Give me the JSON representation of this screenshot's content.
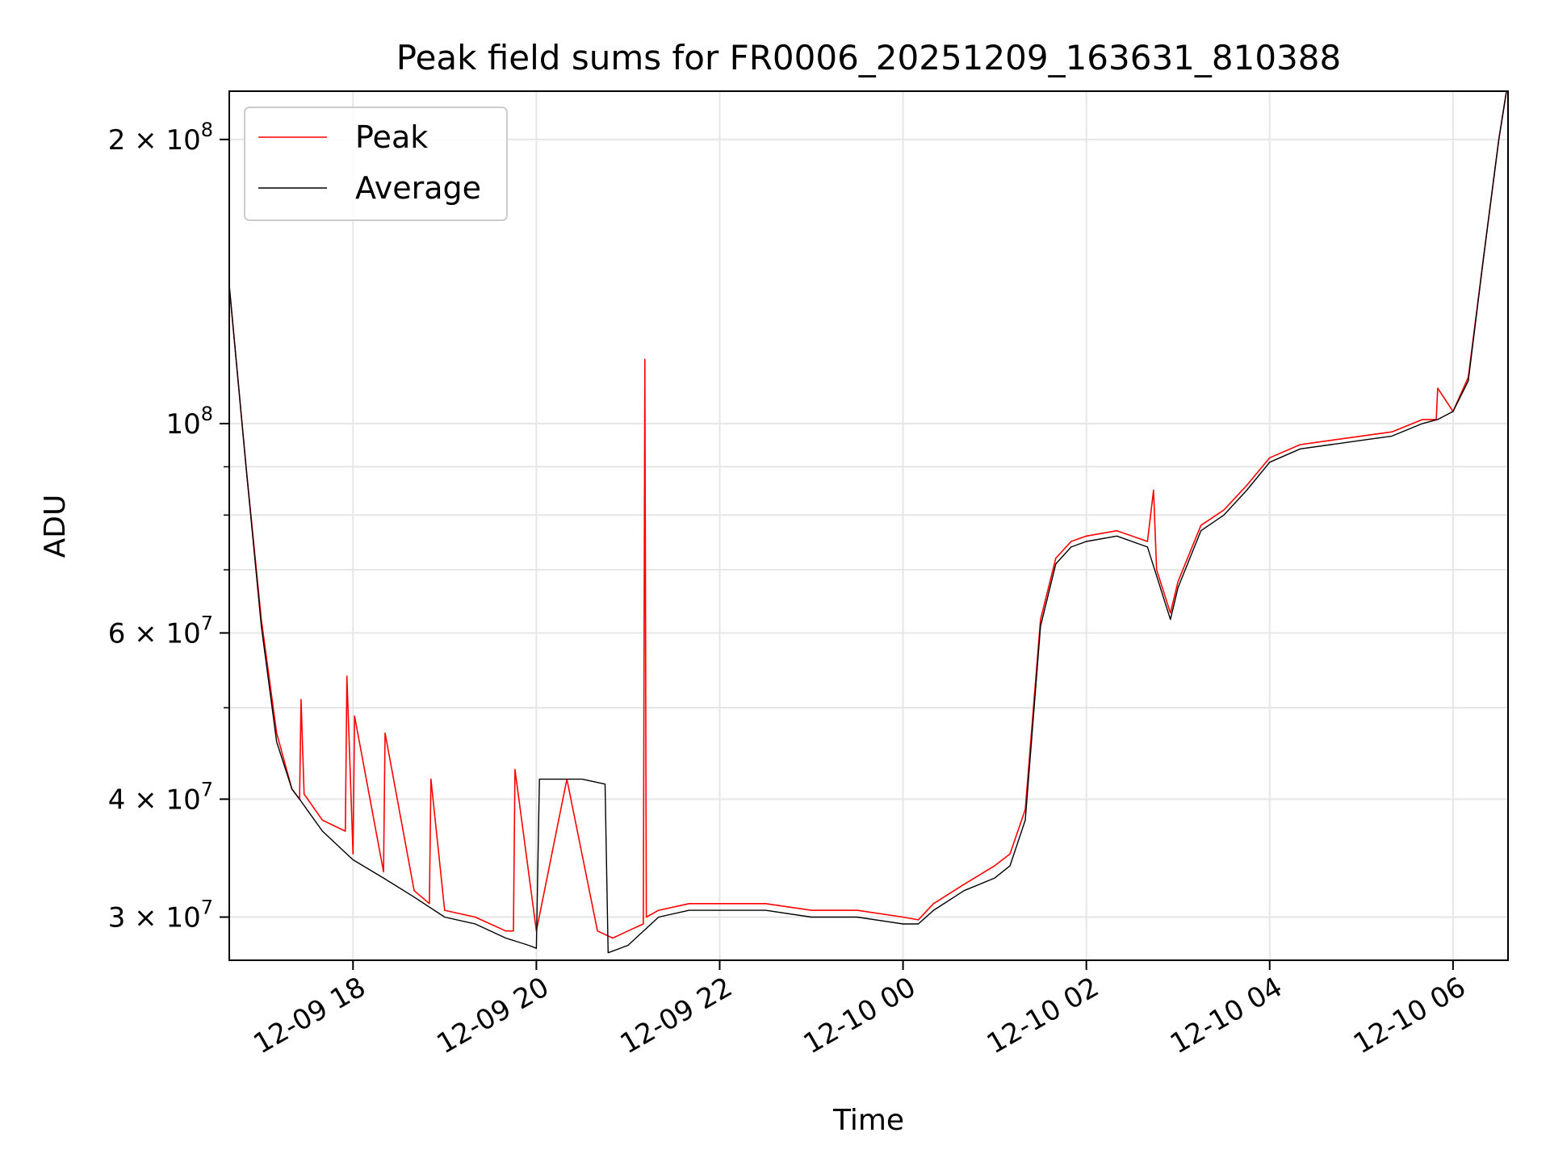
{
  "chart_data": {
    "type": "line",
    "title": "Peak field sums for FR0006_20251209_163631_810388",
    "xlabel": "Time",
    "ylabel": "ADU",
    "yscale": "log",
    "xlim": [
      "2025-12-09 16:39",
      "2025-12-10 06:36"
    ],
    "ylim": [
      27000000,
      225000000
    ],
    "grid": true,
    "legend": "upper-left",
    "x_ticks": [
      "12-09 18",
      "12-09 20",
      "12-09 22",
      "12-10 00",
      "12-10 02",
      "12-10 04",
      "12-10 06"
    ],
    "y_ticks": [
      {
        "value": 30000000,
        "base": "3",
        "exp": "7"
      },
      {
        "value": 40000000,
        "base": "4",
        "exp": "7"
      },
      {
        "value": 60000000,
        "base": "6",
        "exp": "7"
      },
      {
        "value": 100000000,
        "base": "",
        "exp": "8"
      },
      {
        "value": 200000000,
        "base": "2",
        "exp": "8"
      }
    ],
    "series": [
      {
        "name": "Peak",
        "color": "#ff0000",
        "x": [
          "2025-12-09 16:39",
          "2025-12-09 16:50",
          "2025-12-09 17:00",
          "2025-12-09 17:10",
          "2025-12-09 17:20",
          "2025-12-09 17:25",
          "2025-12-09 17:26",
          "2025-12-09 17:28",
          "2025-12-09 17:40",
          "2025-12-09 17:55",
          "2025-12-09 17:56",
          "2025-12-09 18:00",
          "2025-12-09 18:01",
          "2025-12-09 18:20",
          "2025-12-09 18:21",
          "2025-12-09 18:40",
          "2025-12-09 18:50",
          "2025-12-09 18:51",
          "2025-12-09 19:00",
          "2025-12-09 19:20",
          "2025-12-09 19:40",
          "2025-12-09 19:45",
          "2025-12-09 19:46",
          "2025-12-09 20:00",
          "2025-12-09 20:20",
          "2025-12-09 20:40",
          "2025-12-09 20:50",
          "2025-12-09 21:00",
          "2025-12-09 21:10",
          "2025-12-09 21:11",
          "2025-12-09 21:12",
          "2025-12-09 21:20",
          "2025-12-09 21:40",
          "2025-12-09 22:00",
          "2025-12-09 22:30",
          "2025-12-09 23:00",
          "2025-12-09 23:30",
          "2025-12-10 00:00",
          "2025-12-10 00:10",
          "2025-12-10 00:20",
          "2025-12-10 00:40",
          "2025-12-10 01:00",
          "2025-12-10 01:10",
          "2025-12-10 01:20",
          "2025-12-10 01:30",
          "2025-12-10 01:40",
          "2025-12-10 01:50",
          "2025-12-10 02:00",
          "2025-12-10 02:20",
          "2025-12-10 02:40",
          "2025-12-10 02:44",
          "2025-12-10 02:46",
          "2025-12-10 02:55",
          "2025-12-10 03:00",
          "2025-12-10 03:15",
          "2025-12-10 03:30",
          "2025-12-10 03:45",
          "2025-12-10 04:00",
          "2025-12-10 04:20",
          "2025-12-10 04:40",
          "2025-12-10 05:00",
          "2025-12-10 05:20",
          "2025-12-10 05:40",
          "2025-12-10 05:49",
          "2025-12-10 05:50",
          "2025-12-10 06:00",
          "2025-12-10 06:10",
          "2025-12-10 06:20",
          "2025-12-10 06:30",
          "2025-12-10 06:35"
        ],
        "y": [
          140000000,
          90000000,
          62000000,
          47000000,
          41000000,
          40000000,
          51000000,
          40500000,
          38000000,
          37000000,
          54000000,
          35000000,
          49000000,
          33500000,
          47000000,
          32000000,
          31000000,
          42000000,
          30500000,
          30000000,
          29000000,
          29000000,
          43000000,
          29000000,
          42000000,
          29000000,
          28500000,
          29000000,
          29500000,
          117000000,
          30000000,
          30500000,
          31000000,
          31000000,
          31000000,
          30500000,
          30500000,
          30000000,
          29800000,
          31000000,
          32500000,
          34000000,
          35000000,
          39000000,
          62000000,
          72000000,
          75000000,
          76000000,
          77000000,
          75000000,
          85000000,
          70000000,
          63000000,
          68000000,
          78000000,
          81000000,
          86000000,
          92000000,
          95000000,
          96000000,
          97000000,
          98000000,
          101000000,
          101000000,
          109000000,
          103000000,
          112000000,
          150000000,
          200000000,
          225000000
        ]
      },
      {
        "name": "Average",
        "color": "#000000",
        "x": [
          "2025-12-09 16:39",
          "2025-12-09 16:50",
          "2025-12-09 17:00",
          "2025-12-09 17:10",
          "2025-12-09 17:20",
          "2025-12-09 17:25",
          "2025-12-09 17:40",
          "2025-12-09 18:00",
          "2025-12-09 18:20",
          "2025-12-09 18:40",
          "2025-12-09 19:00",
          "2025-12-09 19:20",
          "2025-12-09 19:40",
          "2025-12-09 19:55",
          "2025-12-09 20:00",
          "2025-12-09 20:02",
          "2025-12-09 20:30",
          "2025-12-09 20:45",
          "2025-12-09 20:47",
          "2025-12-09 21:00",
          "2025-12-09 21:20",
          "2025-12-09 21:40",
          "2025-12-09 22:00",
          "2025-12-09 22:30",
          "2025-12-09 23:00",
          "2025-12-09 23:30",
          "2025-12-10 00:00",
          "2025-12-10 00:10",
          "2025-12-10 00:20",
          "2025-12-10 00:40",
          "2025-12-10 01:00",
          "2025-12-10 01:10",
          "2025-12-10 01:20",
          "2025-12-10 01:30",
          "2025-12-10 01:40",
          "2025-12-10 01:50",
          "2025-12-10 02:00",
          "2025-12-10 02:20",
          "2025-12-10 02:40",
          "2025-12-10 02:55",
          "2025-12-10 03:00",
          "2025-12-10 03:15",
          "2025-12-10 03:30",
          "2025-12-10 03:45",
          "2025-12-10 04:00",
          "2025-12-10 04:20",
          "2025-12-10 04:40",
          "2025-12-10 05:00",
          "2025-12-10 05:20",
          "2025-12-10 05:40",
          "2025-12-10 05:50",
          "2025-12-10 06:00",
          "2025-12-10 06:10",
          "2025-12-10 06:20",
          "2025-12-10 06:30",
          "2025-12-10 06:35"
        ],
        "y": [
          140000000,
          90000000,
          61000000,
          46000000,
          41000000,
          40000000,
          37000000,
          34500000,
          33000000,
          31500000,
          30000000,
          29500000,
          28500000,
          28000000,
          27800000,
          42000000,
          42000000,
          41500000,
          27500000,
          28000000,
          30000000,
          30500000,
          30500000,
          30500000,
          30000000,
          30000000,
          29500000,
          29500000,
          30500000,
          32000000,
          33000000,
          34000000,
          38000000,
          61000000,
          71000000,
          74000000,
          75000000,
          76000000,
          74000000,
          62000000,
          67000000,
          77000000,
          80000000,
          85000000,
          91000000,
          94000000,
          95000000,
          96000000,
          97000000,
          100000000,
          101000000,
          103000000,
          111000000,
          150000000,
          200000000,
          225000000
        ]
      }
    ]
  }
}
